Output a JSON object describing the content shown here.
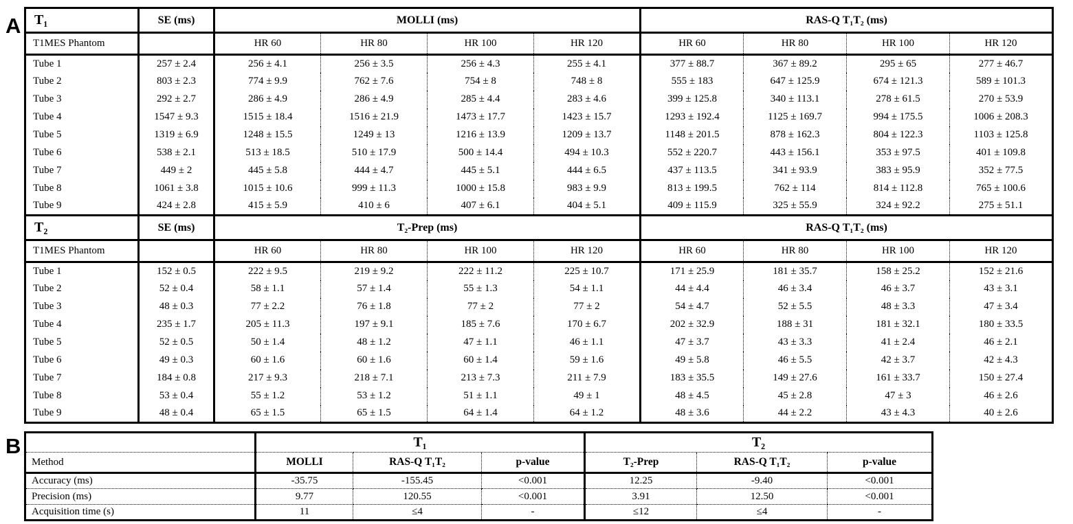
{
  "figure": {
    "panel_a_label": "A",
    "panel_b_label": "B"
  },
  "phantom_table": {
    "row_header": "T1MES Phantom",
    "se_header": "SE (ms)",
    "hr_columns": [
      "HR 60",
      "HR 80",
      "HR 100",
      "HR 120"
    ],
    "sections": [
      {
        "title": "T₁",
        "method1_header": "MOLLI (ms)",
        "method2_header": "RAS-Q T₁T₂ (ms)",
        "rows": [
          [
            "Tube 1",
            "257 ± 2.4",
            "256 ± 4.1",
            "256 ± 3.5",
            "256 ± 4.3",
            "255 ± 4.1",
            "377 ± 88.7",
            "367 ± 89.2",
            "295 ± 65",
            "277 ± 46.7"
          ],
          [
            "Tube 2",
            "803 ± 2.3",
            "774 ± 9.9",
            "762 ± 7.6",
            "754 ± 8",
            "748 ± 8",
            "555 ± 183",
            "647 ± 125.9",
            "674 ± 121.3",
            "589 ± 101.3"
          ],
          [
            "Tube 3",
            "292 ± 2.7",
            "286 ± 4.9",
            "286 ± 4.9",
            "285 ± 4.4",
            "283 ± 4.6",
            "399 ± 125.8",
            "340 ± 113.1",
            "278 ± 61.5",
            "270 ± 53.9"
          ],
          [
            "Tube 4",
            "1547 ± 9.3",
            "1515 ± 18.4",
            "1516 ± 21.9",
            "1473 ± 17.7",
            "1423 ± 15.7",
            "1293 ± 192.4",
            "1125 ± 169.7",
            "994 ± 175.5",
            "1006 ± 208.3"
          ],
          [
            "Tube 5",
            "1319 ± 6.9",
            "1248 ± 15.5",
            "1249 ± 13",
            "1216 ± 13.9",
            "1209 ± 13.7",
            "1148 ± 201.5",
            "878 ± 162.3",
            "804 ± 122.3",
            "1103 ± 125.8"
          ],
          [
            "Tube 6",
            "538 ± 2.1",
            "513 ± 18.5",
            "510 ± 17.9",
            "500 ± 14.4",
            "494 ± 10.3",
            "552 ± 220.7",
            "443 ± 156.1",
            "353 ± 97.5",
            "401 ± 109.8"
          ],
          [
            "Tube 7",
            "449 ± 2",
            "445 ± 5.8",
            "444 ± 4.7",
            "445 ± 5.1",
            "444 ± 6.5",
            "437 ± 113.5",
            "341 ± 93.9",
            "383 ± 95.9",
            "352 ± 77.5"
          ],
          [
            "Tube 8",
            "1061 ± 3.8",
            "1015 ± 10.6",
            "999 ± 11.3",
            "1000 ± 15.8",
            "983 ± 9.9",
            "813 ± 199.5",
            "762 ± 114",
            "814 ± 112.8",
            "765 ± 100.6"
          ],
          [
            "Tube 9",
            "424 ± 2.8",
            "415 ± 5.9",
            "410 ± 6",
            "407 ± 6.1",
            "404 ± 5.1",
            "409 ± 115.9",
            "325 ± 55.9",
            "324 ± 92.2",
            "275 ± 51.1"
          ]
        ]
      },
      {
        "title": "T₂",
        "method1_header": "T₂-Prep (ms)",
        "method2_header": "RAS-Q T₁T₂ (ms)",
        "rows": [
          [
            "Tube 1",
            "152 ± 0.5",
            "222 ± 9.5",
            "219 ± 9.2",
            "222 ± 11.2",
            "225 ± 10.7",
            "171 ± 25.9",
            "181 ± 35.7",
            "158 ± 25.2",
            "152 ± 21.6"
          ],
          [
            "Tube 2",
            "52 ± 0.4",
            "58 ± 1.1",
            "57 ± 1.4",
            "55 ± 1.3",
            "54 ± 1.1",
            "44 ± 4.4",
            "46 ± 3.4",
            "46 ± 3.7",
            "43 ± 3.1"
          ],
          [
            "Tube 3",
            "48 ± 0.3",
            "77 ± 2.2",
            "76 ± 1.8",
            "77 ± 2",
            "77 ± 2",
            "54 ± 4.7",
            "52 ± 5.5",
            "48 ± 3.3",
            "47 ± 3.4"
          ],
          [
            "Tube 4",
            "235 ± 1.7",
            "205 ± 11.3",
            "197 ± 9.1",
            "185 ± 7.6",
            "170 ± 6.7",
            "202 ± 32.9",
            "188 ± 31",
            "181 ± 32.1",
            "180 ± 33.5"
          ],
          [
            "Tube 5",
            "52 ± 0.5",
            "50 ± 1.4",
            "48 ± 1.2",
            "47 ± 1.1",
            "46 ± 1.1",
            "47 ± 3.7",
            "43 ± 3.3",
            "41 ± 2.4",
            "46 ± 2.1"
          ],
          [
            "Tube 6",
            "49 ± 0.3",
            "60 ± 1.6",
            "60 ± 1.6",
            "60 ± 1.4",
            "59 ± 1.6",
            "49 ± 5.8",
            "46 ± 5.5",
            "42 ± 3.7",
            "42 ± 4.3"
          ],
          [
            "Tube 7",
            "184 ± 0.8",
            "217 ± 9.3",
            "218 ± 7.1",
            "213 ± 7.3",
            "211 ± 7.9",
            "183 ± 35.5",
            "149 ± 27.6",
            "161 ± 33.7",
            "150 ± 27.4"
          ],
          [
            "Tube 8",
            "53 ± 0.4",
            "55 ± 1.2",
            "53 ± 1.2",
            "51 ± 1.1",
            "49 ± 1",
            "48 ± 4.5",
            "45 ± 2.8",
            "47 ± 3",
            "46 ± 2.6"
          ],
          [
            "Tube 9",
            "48 ± 0.4",
            "65 ± 1.5",
            "65 ± 1.5",
            "64 ± 1.4",
            "64 ± 1.2",
            "48 ± 3.6",
            "44 ± 2.2",
            "43 ± 4.3",
            "40 ± 2.6"
          ]
        ]
      }
    ]
  },
  "summary_table": {
    "method_header": "Method",
    "groups": [
      {
        "title": "T₁",
        "columns": [
          "MOLLI",
          "RAS-Q T₁T₂",
          "p-value"
        ]
      },
      {
        "title": "T₂",
        "columns": [
          "T₂-Prep",
          "RAS-Q T₁T₂",
          "p-value"
        ]
      }
    ],
    "rows": [
      [
        "Accuracy (ms)",
        "-35.75",
        "-155.45",
        "<0.001",
        "12.25",
        "-9.40",
        "<0.001"
      ],
      [
        "Precision (ms)",
        "9.77",
        "120.55",
        "<0.001",
        "3.91",
        "12.50",
        "<0.001"
      ],
      [
        "Acquisition time (s)",
        "11",
        "≤4",
        "-",
        "≤12",
        "≤4",
        "-"
      ]
    ]
  }
}
